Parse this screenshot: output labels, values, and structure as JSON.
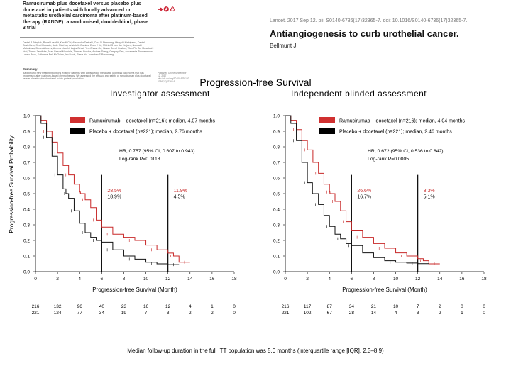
{
  "article": {
    "title": "Ramucirumab plus docetaxel versus placebo plus docetaxel in patients with locally advanced or metastatic urothelial carcinoma after platinum-based therapy (RANGE): a randomised, double-blind, phase 3 trial",
    "authors": "Daniel P Petrylak, Ronald de Wit, Kim N Chi, Alexandra Drakaki, Cora N Sternberg, Hiroyuki Nishiyama, Daniel Castellano, Syed Hussain, Aude Fléchon, Aristotelis Bamias, Evan Y Yu, Michiel S van der Heijden, Nobuaki Matsubara, Boris Alekseev, Andrea Necchi, Lajos Géczi, Yen-Chuan Ou, Hasan Senol Coskun, Wen-Pin Su, Masatoshi Hori, Tomas Zemlicka, Jean-Pascal Machiels, Thomas Powles, Andrea Zheng, Gregory Gao, Annamaria Zimmermann, Lazslo Beck, Katherine Bell-McGuinn, Ian Davis, Steve Yu, Jonathan E Rosenberg",
    "summary_heading": "Summary",
    "summary": "Background Few treatment options exist for patients with advanced or metastatic urothelial carcinoma that has progressed after platinum-based chemotherapy. We assessed the efficacy and safety of ramucirumab plus docetaxel versus placebo plus docetaxel in this patient population.",
    "side_note": "Published Online September 12, 2017 http://dx.doi.org/10.1016/S0140-6736(17)32365-6",
    "logo": "➜✪♺"
  },
  "editorial": {
    "citation": "Lancet. 2017 Sep 12. pii: S0140-6736(17)32365-7. doi: 10.1016/S0140-6736(17)32365-7.",
    "title": "Antiangiogenesis to curb urothelial cancer.",
    "author": "Bellmunt J"
  },
  "figure": {
    "main_title": "Progression-free Survival",
    "y_axis_label": "Progression-free Survival Probability",
    "footnote": "Median follow-up duration in the full ITT population was 5.0 months (interquartile range [IQR], 2.3–8.9)"
  },
  "chart_data": [
    {
      "type": "line",
      "title": "Investigator assessment",
      "xlabel": "Progression-free Survival (Month)",
      "ylabel": "Progression-free Survival Probability",
      "xlim": [
        0,
        18
      ],
      "ylim": [
        0,
        1
      ],
      "xticks": [
        0,
        2,
        4,
        6,
        8,
        10,
        12,
        14,
        16,
        18
      ],
      "yticks": [
        "0.0",
        "0.1",
        "0.2",
        "0.3",
        "0.4",
        "0.5",
        "0.6",
        "0.7",
        "0.8",
        "0.9",
        "1.0"
      ],
      "series": [
        {
          "name": "Ramucirumab + docetaxel (n=216); median, 4.07 months",
          "color": "#c82828",
          "x": [
            0,
            0.5,
            1,
            1.5,
            2,
            2.5,
            3,
            3.5,
            4,
            4.07,
            4.5,
            5,
            5.5,
            6,
            7,
            8,
            9,
            10,
            11,
            12,
            12.5,
            13,
            14
          ],
          "y": [
            1,
            0.97,
            0.9,
            0.83,
            0.76,
            0.68,
            0.62,
            0.56,
            0.51,
            0.5,
            0.46,
            0.41,
            0.33,
            0.285,
            0.24,
            0.22,
            0.2,
            0.17,
            0.14,
            0.119,
            0.1,
            0.06,
            0.06
          ]
        },
        {
          "name": "Placebo + docetaxel (n=221); median, 2.76 months",
          "color": "#111111",
          "x": [
            0,
            0.5,
            1,
            1.5,
            2,
            2.5,
            2.76,
            3,
            3.5,
            4,
            4.5,
            5,
            5.5,
            6,
            7,
            8,
            9,
            10,
            11,
            12,
            13
          ],
          "y": [
            1,
            0.95,
            0.86,
            0.74,
            0.62,
            0.53,
            0.5,
            0.47,
            0.39,
            0.31,
            0.25,
            0.22,
            0.2,
            0.189,
            0.14,
            0.1,
            0.08,
            0.06,
            0.05,
            0.045,
            0.045
          ]
        }
      ],
      "hr_text": "HR, 0.757 (95% CI, 0.607 to 0.943)",
      "p_text": "Log-rank P=0.0118",
      "landmarks": [
        {
          "month": 6,
          "ram": "28.5%",
          "pbo": "18.9%"
        },
        {
          "month": 12,
          "ram": "11.9%",
          "pbo": "4.5%"
        }
      ],
      "at_risk": {
        "months": [
          0,
          2,
          4,
          6,
          8,
          10,
          12,
          14,
          16,
          18
        ],
        "ram": [
          "216",
          "132",
          "96",
          "40",
          "23",
          "16",
          "12",
          "4",
          "1",
          "0"
        ],
        "pbo": [
          "221",
          "124",
          "77",
          "34",
          "19",
          "7",
          "3",
          "2",
          "2",
          "0"
        ]
      }
    },
    {
      "type": "line",
      "title": "Independent blinded assessment",
      "xlabel": "Progression-free Survival (Month)",
      "ylabel": "Progression-free Survival Probability",
      "xlim": [
        0,
        18
      ],
      "ylim": [
        0,
        1
      ],
      "xticks": [
        0,
        2,
        4,
        6,
        8,
        10,
        12,
        14,
        16,
        18
      ],
      "yticks": [
        "0.0",
        "0.1",
        "0.2",
        "0.3",
        "0.4",
        "0.5",
        "0.6",
        "0.7",
        "0.8",
        "0.9",
        "1.0"
      ],
      "series": [
        {
          "name": "Ramucirumab + docetaxel (n=216); median, 4.04 months",
          "color": "#c82828",
          "x": [
            0,
            0.5,
            1,
            1.5,
            2,
            2.5,
            3,
            3.5,
            4,
            4.04,
            4.5,
            5,
            5.5,
            6,
            7,
            8,
            9,
            10,
            11,
            12,
            12.5,
            13,
            14
          ],
          "y": [
            1,
            0.97,
            0.91,
            0.84,
            0.78,
            0.7,
            0.63,
            0.56,
            0.51,
            0.5,
            0.45,
            0.39,
            0.32,
            0.266,
            0.22,
            0.18,
            0.15,
            0.12,
            0.1,
            0.083,
            0.07,
            0.05,
            0.05
          ]
        },
        {
          "name": "Placebo + docetaxel (n=221); median, 2.46 months",
          "color": "#111111",
          "x": [
            0,
            0.5,
            1,
            1.5,
            2,
            2.46,
            3,
            3.5,
            4,
            4.5,
            5,
            5.5,
            6,
            7,
            8,
            9,
            10,
            11,
            12,
            13
          ],
          "y": [
            1,
            0.95,
            0.84,
            0.7,
            0.57,
            0.5,
            0.43,
            0.36,
            0.29,
            0.24,
            0.21,
            0.18,
            0.167,
            0.12,
            0.09,
            0.07,
            0.06,
            0.055,
            0.051,
            0.051
          ]
        }
      ],
      "hr_text": "HR, 0.672 (95% CI, 0.536 to 0.842)",
      "p_text": "Log-rank P=0.0005",
      "landmarks": [
        {
          "month": 6,
          "ram": "26.6%",
          "pbo": "16.7%"
        },
        {
          "month": 12,
          "ram": "8.3%",
          "pbo": "5.1%"
        }
      ],
      "at_risk": {
        "months": [
          0,
          2,
          4,
          6,
          8,
          10,
          12,
          14,
          16,
          18
        ],
        "ram": [
          "216",
          "117",
          "87",
          "34",
          "21",
          "10",
          "7",
          "2",
          "0",
          "0"
        ],
        "pbo": [
          "221",
          "102",
          "67",
          "28",
          "14",
          "4",
          "3",
          "2",
          "1",
          "0"
        ]
      }
    }
  ]
}
